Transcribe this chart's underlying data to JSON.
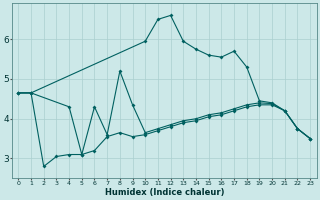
{
  "xlabel": "Humidex (Indice chaleur)",
  "bg_color": "#cce8e8",
  "grid_color": "#aacfcf",
  "line_color": "#006060",
  "xlim": [
    -0.5,
    23.5
  ],
  "ylim": [
    2.5,
    6.9
  ],
  "yticks": [
    3,
    4,
    5,
    6
  ],
  "xticks": [
    0,
    1,
    2,
    3,
    4,
    5,
    6,
    7,
    8,
    9,
    10,
    11,
    12,
    13,
    14,
    15,
    16,
    17,
    18,
    19,
    20,
    21,
    22,
    23
  ],
  "series": {
    "line_peak": {
      "x": [
        0,
        1,
        10,
        11,
        12,
        13,
        14,
        15,
        16,
        17,
        18,
        19,
        20,
        21,
        22,
        23
      ],
      "y": [
        4.65,
        4.65,
        5.95,
        6.5,
        6.6,
        5.95,
        5.75,
        5.6,
        5.55,
        5.7,
        5.3,
        4.45,
        4.4,
        4.2,
        3.75,
        3.5
      ]
    },
    "line_bottom": {
      "x": [
        0,
        1,
        2,
        3,
        4,
        5,
        6,
        7,
        8,
        9,
        10,
        11,
        12,
        13,
        14,
        15,
        16,
        17,
        18,
        19,
        20,
        21,
        22,
        23
      ],
      "y": [
        4.65,
        4.65,
        2.8,
        3.05,
        3.1,
        3.1,
        3.2,
        3.55,
        3.65,
        3.55,
        3.6,
        3.7,
        3.8,
        3.9,
        3.95,
        4.05,
        4.1,
        4.2,
        4.3,
        4.35,
        4.35,
        4.2,
        3.75,
        3.5
      ]
    },
    "line_mid": {
      "x": [
        0,
        1,
        4,
        5,
        6,
        7,
        8,
        9,
        10,
        11,
        12,
        13,
        14,
        15,
        16,
        17,
        18,
        19,
        20,
        21,
        22,
        23
      ],
      "y": [
        4.65,
        4.65,
        4.3,
        3.1,
        4.3,
        3.6,
        5.2,
        4.35,
        3.65,
        3.75,
        3.85,
        3.95,
        4.0,
        4.1,
        4.15,
        4.25,
        4.35,
        4.4,
        4.38,
        4.2,
        3.75,
        3.5
      ]
    }
  }
}
